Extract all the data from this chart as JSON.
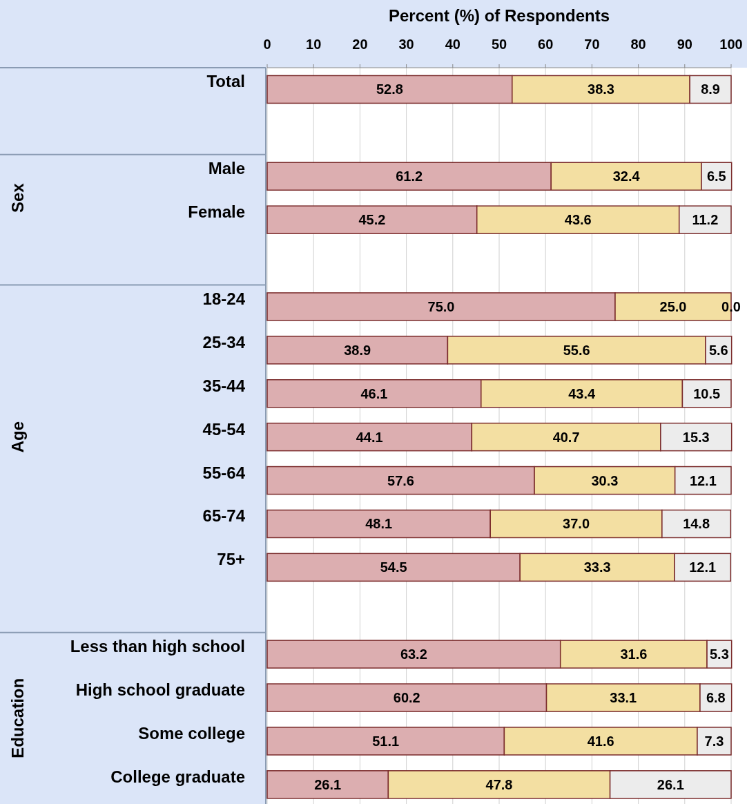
{
  "chart_data": {
    "type": "bar",
    "orientation": "horizontal",
    "stacked": true,
    "xlabel": "Percent (%) of Respondents",
    "xlim": [
      0,
      100
    ],
    "xticks": [
      0,
      10,
      20,
      30,
      40,
      50,
      60,
      70,
      80,
      90,
      100
    ],
    "grid": "x",
    "categories": [
      "Total",
      null,
      "Male",
      "Female",
      null,
      "18-24",
      "25-34",
      "35-44",
      "45-54",
      "55-64",
      "65-74",
      "75+",
      null,
      "Less than high school",
      "High school graduate",
      "Some college",
      "College graduate"
    ],
    "annotations": [
      "Sex",
      "Age",
      "Education"
    ],
    "series": [
      {
        "color": "#dcaeb0",
        "values": [
          52.8,
          null,
          61.2,
          45.2,
          null,
          75.0,
          38.9,
          46.1,
          44.1,
          57.6,
          48.1,
          54.5,
          null,
          63.2,
          60.2,
          51.1,
          26.1
        ],
        "value_labels": [
          "52.8",
          null,
          "61.2",
          "45.2",
          null,
          "75.0",
          "38.9",
          "46.1",
          "44.1",
          "57.6",
          "48.1",
          "54.5",
          null,
          "63.2",
          "60.2",
          "51.1",
          "26.1"
        ]
      },
      {
        "color": "#f3dfa2",
        "values": [
          38.3,
          null,
          32.4,
          43.6,
          null,
          25.0,
          55.6,
          43.4,
          40.7,
          30.3,
          37.0,
          33.3,
          null,
          31.6,
          33.1,
          41.6,
          47.8
        ],
        "value_labels": [
          "38.3",
          null,
          "32.4",
          "43.6",
          null,
          "25.0",
          "55.6",
          "43.4",
          "40.7",
          "30.3",
          "37.0",
          "33.3",
          null,
          "31.6",
          "33.1",
          "41.6",
          "47.8"
        ]
      },
      {
        "color": "#ececec",
        "values": [
          8.9,
          null,
          6.5,
          11.2,
          null,
          0.0,
          5.6,
          10.5,
          15.3,
          12.1,
          14.8,
          12.1,
          null,
          5.3,
          6.8,
          7.3,
          26.1
        ],
        "value_labels": [
          "8.9",
          null,
          "6.5",
          "11.2",
          null,
          "0.0",
          "5.6",
          "10.5",
          "15.3",
          "12.1",
          "14.8",
          "12.1",
          null,
          "5.3",
          "6.8",
          "7.3",
          "26.1"
        ]
      }
    ]
  }
}
